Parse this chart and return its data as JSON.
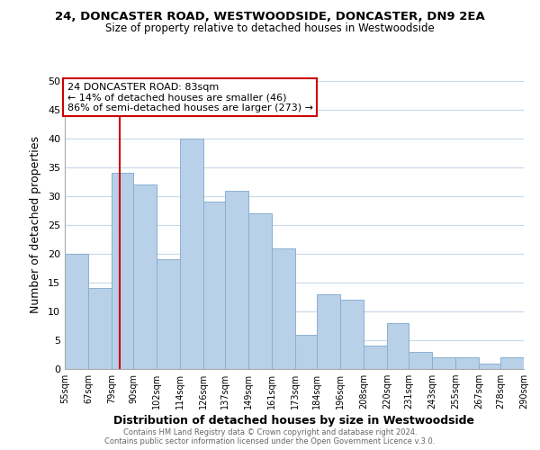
{
  "title": "24, DONCASTER ROAD, WESTWOODSIDE, DONCASTER, DN9 2EA",
  "subtitle": "Size of property relative to detached houses in Westwoodside",
  "xlabel": "Distribution of detached houses by size in Westwoodside",
  "ylabel": "Number of detached properties",
  "bar_color": "#b8d0e8",
  "bar_edge_color": "#8ab0d0",
  "bg_color": "#ffffff",
  "grid_color": "#c8d8e8",
  "annotation_line_color": "#cc0000",
  "annotation_box_color": "#cc0000",
  "bins": [
    55,
    67,
    79,
    90,
    102,
    114,
    126,
    137,
    149,
    161,
    173,
    184,
    196,
    208,
    220,
    231,
    243,
    255,
    267,
    278,
    290
  ],
  "counts": [
    20,
    14,
    34,
    32,
    19,
    40,
    29,
    31,
    27,
    21,
    6,
    13,
    12,
    4,
    8,
    3,
    2,
    2,
    1,
    2
  ],
  "tick_labels": [
    "55sqm",
    "67sqm",
    "79sqm",
    "90sqm",
    "102sqm",
    "114sqm",
    "126sqm",
    "137sqm",
    "149sqm",
    "161sqm",
    "173sqm",
    "184sqm",
    "196sqm",
    "208sqm",
    "220sqm",
    "231sqm",
    "243sqm",
    "255sqm",
    "267sqm",
    "278sqm",
    "290sqm"
  ],
  "ylim": [
    0,
    50
  ],
  "yticks": [
    0,
    5,
    10,
    15,
    20,
    25,
    30,
    35,
    40,
    45,
    50
  ],
  "property_size": 83,
  "annotation_title": "24 DONCASTER ROAD: 83sqm",
  "annotation_line1": "← 14% of detached houses are smaller (46)",
  "annotation_line2": "86% of semi-detached houses are larger (273) →",
  "footer1": "Contains HM Land Registry data © Crown copyright and database right 2024.",
  "footer2": "Contains public sector information licensed under the Open Government Licence v.3.0."
}
